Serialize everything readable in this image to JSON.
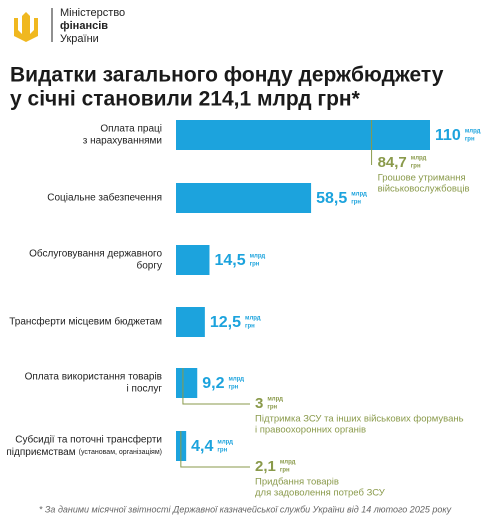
{
  "header": {
    "org_lines": [
      "Міністерство",
      "фінансів",
      "України"
    ]
  },
  "chart_data": {
    "type": "bar",
    "title_lines": [
      "Видатки загального фонду держбюджету",
      "у січні становили 214,1 млрд грн*"
    ],
    "categories": [
      {
        "lines": [
          "Оплата праці",
          "з нарахуваннями"
        ]
      },
      {
        "lines": [
          "Соціальне забезпечення"
        ]
      },
      {
        "lines": [
          "Обслуговування державного",
          "боргу"
        ]
      },
      {
        "lines": [
          "Трансферти місцевим бюджетам"
        ]
      },
      {
        "lines": [
          "Оплата використання товарів",
          "і послуг"
        ]
      },
      {
        "lines": [
          "Субсидії та поточні трансферти",
          "підприємствам"
        ],
        "note": "(установам, організаціям)"
      }
    ],
    "values": [
      110,
      58.5,
      14.5,
      12.5,
      9.2,
      4.4
    ],
    "value_labels": [
      "110",
      "58,5",
      "14,5",
      "12,5",
      "9,2",
      "4,4"
    ],
    "unit_lines": [
      "млрд",
      "грн"
    ],
    "color": "#1ca3dd",
    "sub_series": {
      "color": "#8a9a4b",
      "values": [
        84.7,
        null,
        null,
        null,
        3,
        2.1
      ],
      "value_labels": [
        "84,7",
        null,
        null,
        null,
        "3",
        "2,1"
      ],
      "notes": [
        [
          "Грошове утримання",
          "військовослужбовців"
        ],
        null,
        null,
        null,
        [
          "Підтримка ЗСУ та інших військових формувань",
          "і правоохоронних органів"
        ],
        [
          "Придбання товарів",
          "для задоволення потреб ЗСУ"
        ]
      ]
    },
    "footnote": "* За даними місячної звітності Державної казначейської служби України від 14 лютого 2025 року"
  }
}
